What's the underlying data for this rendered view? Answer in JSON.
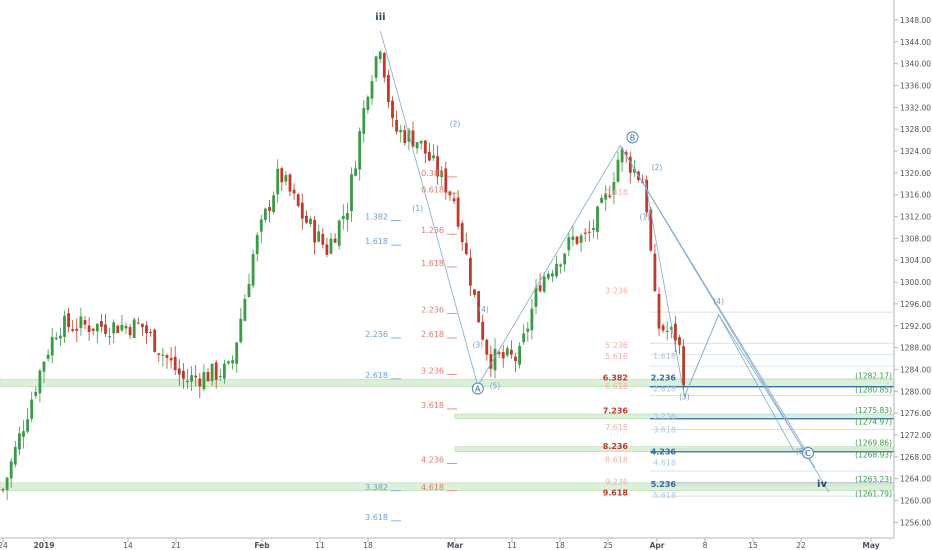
{
  "chart_data": {
    "type": "candlestick",
    "title": "",
    "xlabel": "",
    "ylabel": "",
    "ylim": [
      1254,
      1350
    ],
    "y_ticks": [
      1256,
      1260,
      1264,
      1268,
      1272,
      1276,
      1280,
      1284,
      1288,
      1292,
      1296,
      1300,
      1304,
      1308,
      1312,
      1316,
      1320,
      1324,
      1328,
      1332,
      1336,
      1340,
      1344,
      1348
    ],
    "x_ticks": [
      "24",
      "2019",
      "14",
      "21",
      "Feb",
      "11",
      "18",
      "Mar",
      "11",
      "18",
      "25",
      "Apr",
      "8",
      "15",
      "22",
      "May"
    ],
    "up_color": "#3a9a46",
    "down_color": "#c0392b",
    "grid": false,
    "price_path": [
      [
        "Dec 24",
        1262
      ],
      [
        "Jan 2",
        1286
      ],
      [
        "Jan 4",
        1292
      ],
      [
        "Jan 10",
        1292
      ],
      [
        "Jan 16",
        1292
      ],
      [
        "Jan 22",
        1282
      ],
      [
        "Jan 28",
        1284
      ],
      [
        "Jan 31",
        1306
      ],
      [
        "Feb 4",
        1320
      ],
      [
        "Feb 8",
        1312
      ],
      [
        "Feb 12",
        1306
      ],
      [
        "Feb 15",
        1314
      ],
      [
        "Feb 18",
        1336
      ],
      [
        "Feb 20",
        1344
      ],
      [
        "Feb 22",
        1328
      ],
      [
        "Feb 26",
        1326
      ],
      [
        "Mar 1",
        1315
      ],
      [
        "Mar 5",
        1294
      ],
      [
        "Mar 7",
        1286
      ],
      [
        "Mar 12",
        1286
      ],
      [
        "Mar 15",
        1300
      ],
      [
        "Mar 20",
        1308
      ],
      [
        "Mar 22",
        1308
      ],
      [
        "Mar 25",
        1316
      ],
      [
        "Mar 26",
        1324
      ],
      [
        "Mar 28",
        1318
      ],
      [
        "Apr 1",
        1292
      ],
      [
        "Apr 4",
        1290
      ],
      [
        "Apr 5",
        1282
      ]
    ],
    "wave_labels": [
      {
        "text": "iii",
        "x": "Feb 20",
        "y": 1348,
        "style": "major"
      },
      {
        "text": "A",
        "x": "Mar 5",
        "y": 1280.5,
        "style": "circled"
      },
      {
        "text": "B",
        "x": "Mar 27",
        "y": 1326.5,
        "style": "circled"
      },
      {
        "text": "C",
        "x": "Apr 23",
        "y": 1268.7,
        "style": "circled"
      },
      {
        "text": "iv",
        "x": "Apr 25",
        "y": 1262.5,
        "style": "major"
      },
      {
        "text": "(1)",
        "x": "Feb 26",
        "y": 1313,
        "style": "minor"
      },
      {
        "text": "(2)",
        "x": "Mar 1",
        "y": 1328.5,
        "style": "minor"
      },
      {
        "text": "(3)",
        "x": "Mar 5",
        "y": 1288,
        "style": "minor"
      },
      {
        "text": "(4)",
        "x": "Mar 6",
        "y": 1294.5,
        "style": "minor"
      },
      {
        "text": "(5)",
        "x": "Mar 8",
        "y": 1280.5,
        "style": "minor"
      },
      {
        "text": "(1)",
        "x": "Mar 28",
        "y": 1311.5,
        "style": "minor"
      },
      {
        "text": "(2)",
        "x": "Mar 29",
        "y": 1320.5,
        "style": "minor"
      },
      {
        "text": "(3)",
        "x": "Apr 5",
        "y": 1278.5,
        "style": "minor"
      },
      {
        "text": "(4)",
        "x": "Apr 10",
        "y": 1296,
        "style": "minor"
      },
      {
        "text": "(5)",
        "x": "Apr 22",
        "y": 1268.5,
        "style": "minor"
      }
    ],
    "fib_labels_blue_left": [
      {
        "text": "1.382",
        "y": 1312
      },
      {
        "text": "1.618",
        "y": 1307.5
      },
      {
        "text": "2.236",
        "y": 1290.5
      },
      {
        "text": "2.618",
        "y": 1283
      },
      {
        "text": "3.382",
        "y": 1262.5
      },
      {
        "text": "3.618",
        "y": 1257
      }
    ],
    "fib_labels_red_mid": [
      {
        "text": "0.382",
        "y": 1320
      },
      {
        "text": "0.618",
        "y": 1317
      },
      {
        "text": "1.236",
        "y": 1309.5
      },
      {
        "text": "1.618",
        "y": 1303.5
      },
      {
        "text": "2.236",
        "y": 1295
      },
      {
        "text": "2.618",
        "y": 1290.5
      },
      {
        "text": "3.236",
        "y": 1283.8
      },
      {
        "text": "3.618",
        "y": 1277.5
      },
      {
        "text": "4.236",
        "y": 1267.5
      },
      {
        "text": "4.618",
        "y": 1262.5
      }
    ],
    "fib_labels_red_right": [
      {
        "text": "0.618",
        "y": 1316.5,
        "strong": false
      },
      {
        "text": "3.236",
        "y": 1298.5,
        "strong": false
      },
      {
        "text": "5.236",
        "y": 1288.5,
        "strong": false
      },
      {
        "text": "5.618",
        "y": 1286.5,
        "strong": false
      },
      {
        "text": "6.382",
        "y": 1282.5,
        "strong": true
      },
      {
        "text": "6.618",
        "y": 1281,
        "strong": false
      },
      {
        "text": "7.236",
        "y": 1276.5,
        "strong": true
      },
      {
        "text": "7.618",
        "y": 1273.5,
        "strong": false
      },
      {
        "text": "8.236",
        "y": 1270,
        "strong": true
      },
      {
        "text": "8.618",
        "y": 1267.5,
        "strong": false
      },
      {
        "text": "9.236",
        "y": 1263.5,
        "strong": false
      },
      {
        "text": "9.618",
        "y": 1261.5,
        "strong": true
      }
    ],
    "fib_labels_blue_right": [
      {
        "text": "1.618",
        "y": 1286.5,
        "strong": false
      },
      {
        "text": "2.236",
        "y": 1282.5,
        "strong": true
      },
      {
        "text": "2.618",
        "y": 1280.5,
        "strong": false
      },
      {
        "text": "3.236",
        "y": 1275.5,
        "strong": false
      },
      {
        "text": "3.618",
        "y": 1273,
        "strong": false
      },
      {
        "text": "4.236",
        "y": 1269,
        "strong": true
      },
      {
        "text": "4.618",
        "y": 1267,
        "strong": false
      },
      {
        "text": "5.236",
        "y": 1263,
        "strong": true
      },
      {
        "text": "5.618",
        "y": 1261,
        "strong": false
      }
    ],
    "target_zones": [
      {
        "range": [
          1280.85,
          1282.17
        ],
        "labels": [
          "(1282.17)",
          "(1280.85)"
        ]
      },
      {
        "range": [
          1274.97,
          1275.83
        ],
        "labels": [
          "(1275.83)",
          "(1274.97)"
        ]
      },
      {
        "range": [
          1268.93,
          1269.86
        ],
        "labels": [
          "(1269.86)",
          "(1268.93)"
        ]
      },
      {
        "range": [
          1261.79,
          1263.23
        ],
        "labels": [
          "(1263.23)",
          "(1261.79)"
        ]
      }
    ]
  }
}
